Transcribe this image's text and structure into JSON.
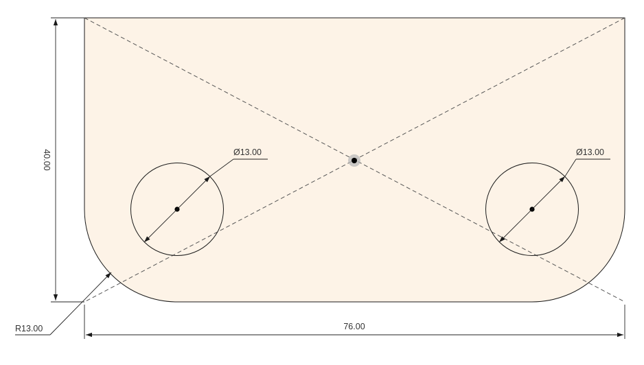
{
  "sketch": {
    "type": "2D CAD sketch",
    "profile_fill": "#fdf3e7",
    "line_color": "#1a1a1a",
    "construction_line_color": "#555555",
    "center_point_highlight": "#b9b9b9"
  },
  "dimensions": {
    "width": "76.00",
    "height": "40.00",
    "corner_radius": "R13.00",
    "left_hole_diameter": "Ø13.00",
    "right_hole_diameter": "Ø13.00"
  }
}
